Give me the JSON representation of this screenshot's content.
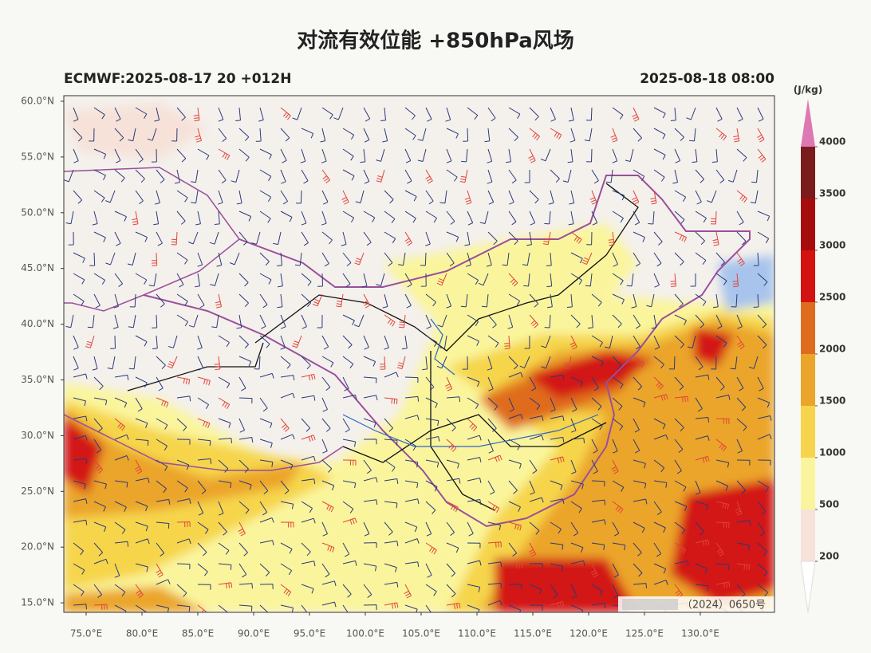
{
  "title": "对流有效位能 +850hPa风场",
  "header_left": "ECMWF:2025-08-17 20 +012H",
  "header_right": "2025-08-18 08:00",
  "lat_ticks": [
    {
      "value": 60,
      "label": "60.0°N"
    },
    {
      "value": 55,
      "label": "55.0°N"
    },
    {
      "value": 50,
      "label": "50.0°N"
    },
    {
      "value": 45,
      "label": "45.0°N"
    },
    {
      "value": 40,
      "label": "40.0°N"
    },
    {
      "value": 35,
      "label": "35.0°N"
    },
    {
      "value": 30,
      "label": "30.0°N"
    },
    {
      "value": 25,
      "label": "25.0°N"
    },
    {
      "value": 20,
      "label": "20.0°N"
    },
    {
      "value": 15,
      "label": "15.0°N"
    }
  ],
  "lon_ticks": [
    {
      "value": 75,
      "label": "75.0°E"
    },
    {
      "value": 80,
      "label": "80.0°E"
    },
    {
      "value": 85,
      "label": "85.0°E"
    },
    {
      "value": 90,
      "label": "90.0°E"
    },
    {
      "value": 95,
      "label": "95.0°E"
    },
    {
      "value": 100,
      "label": "100.0°E"
    },
    {
      "value": 105,
      "label": "105.0°E"
    },
    {
      "value": 110,
      "label": "110.0°E"
    },
    {
      "value": 115,
      "label": "115.0°E"
    },
    {
      "value": 120,
      "label": "120.0°E"
    },
    {
      "value": 125,
      "label": "125.0°E"
    },
    {
      "value": 130,
      "label": "130.0°E"
    }
  ],
  "colorbar": {
    "unit": "(J/kg)",
    "ticks": [
      200,
      500,
      1000,
      1500,
      2000,
      2500,
      3000,
      3500,
      4000
    ],
    "colors": [
      "#f6e2d8",
      "#faf59c",
      "#f6d54c",
      "#eba52a",
      "#df6c1e",
      "#d31212",
      "#a70c0c",
      "#7b1c1c"
    ],
    "over_color": "#de78b2",
    "under_color": "#ffffff"
  },
  "watermark": "（2024）0650号"
}
